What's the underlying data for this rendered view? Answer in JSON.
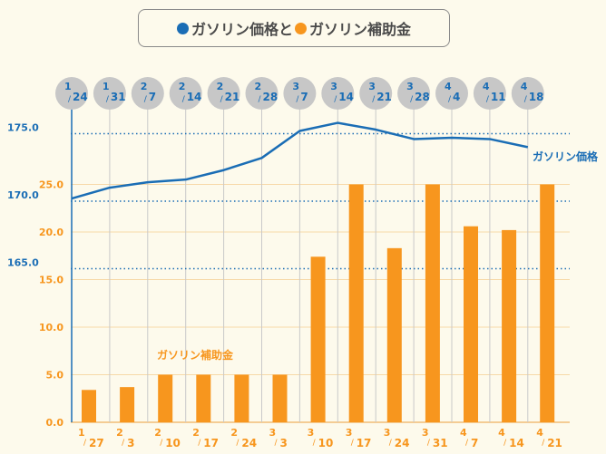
{
  "legend": {
    "price_label": "ガソリン価格",
    "connector": "と",
    "subsidy_label": "ガソリン補助金",
    "price_color": "#1a6db5",
    "subsidy_color": "#f7961e"
  },
  "chart_data": {
    "type": "bar+line",
    "price_series": {
      "name": "ガソリン価格",
      "axis": "left-blue",
      "dates": [
        {
          "m": "1",
          "d": "24"
        },
        {
          "m": "1",
          "d": "31"
        },
        {
          "m": "2",
          "d": "7"
        },
        {
          "m": "2",
          "d": "14"
        },
        {
          "m": "2",
          "d": "21"
        },
        {
          "m": "2",
          "d": "28"
        },
        {
          "m": "3",
          "d": "7"
        },
        {
          "m": "3",
          "d": "14"
        },
        {
          "m": "3",
          "d": "21"
        },
        {
          "m": "3",
          "d": "28"
        },
        {
          "m": "4",
          "d": "4"
        },
        {
          "m": "4",
          "d": "11"
        },
        {
          "m": "4",
          "d": "18"
        }
      ],
      "values": [
        170.2,
        171.0,
        171.4,
        171.6,
        172.3,
        173.2,
        175.2,
        175.8,
        175.3,
        174.6,
        174.7,
        174.6,
        174.0
      ],
      "ticks": [
        "175.0",
        "170.0",
        "165.0"
      ],
      "tick_values": [
        175,
        170,
        165
      ],
      "label": "ガソリン価格"
    },
    "subsidy_series": {
      "name": "ガソリン補助金",
      "axis": "left-orange",
      "dates": [
        {
          "m": "1",
          "d": "27"
        },
        {
          "m": "2",
          "d": "3"
        },
        {
          "m": "2",
          "d": "10"
        },
        {
          "m": "2",
          "d": "17"
        },
        {
          "m": "2",
          "d": "24"
        },
        {
          "m": "3",
          "d": "3"
        },
        {
          "m": "3",
          "d": "10"
        },
        {
          "m": "3",
          "d": "17"
        },
        {
          "m": "3",
          "d": "24"
        },
        {
          "m": "3",
          "d": "31"
        },
        {
          "m": "4",
          "d": "7"
        },
        {
          "m": "4",
          "d": "14"
        },
        {
          "m": "4",
          "d": "21"
        }
      ],
      "values": [
        3.4,
        3.7,
        5.0,
        5.0,
        5.0,
        5.0,
        17.4,
        25.0,
        18.3,
        25.0,
        20.6,
        20.2,
        25.0
      ],
      "ticks": [
        "25.0",
        "20.0",
        "15.0",
        "10.0",
        "5.0",
        "0.0"
      ],
      "tick_values": [
        25,
        20,
        15,
        10,
        5,
        0
      ],
      "ylim": [
        0,
        25
      ],
      "label": "ガソリン補助金"
    }
  }
}
